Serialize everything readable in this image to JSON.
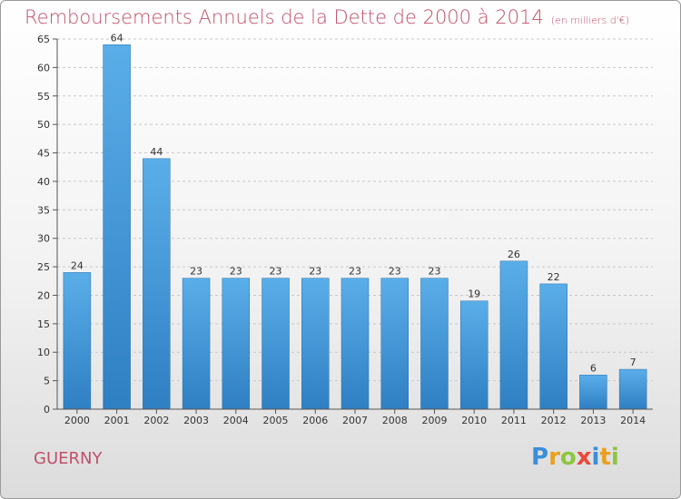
{
  "title": "Remboursements Annuels de la Dette de 2000 à 2014",
  "unit": "(en milliers d'€)",
  "commune": "GUERNY",
  "logo": "Proxiti",
  "colors": {
    "bar_top": "#5aaee8",
    "bar_bottom": "#2f7fc3",
    "title": "#c0506a"
  },
  "chart_data": {
    "type": "bar",
    "title": "Remboursements Annuels de la Dette de 2000 à 2014",
    "xlabel": "",
    "ylabel": "",
    "categories": [
      "2000",
      "2001",
      "2002",
      "2003",
      "2004",
      "2005",
      "2006",
      "2007",
      "2008",
      "2009",
      "2010",
      "2011",
      "2012",
      "2013",
      "2014"
    ],
    "values": [
      24,
      64,
      44,
      23,
      23,
      23,
      23,
      23,
      23,
      23,
      19,
      26,
      22,
      6,
      7
    ],
    "ylim": [
      0,
      65
    ],
    "yticks": [
      0,
      5,
      10,
      15,
      20,
      25,
      30,
      35,
      40,
      45,
      50,
      55,
      60,
      65
    ],
    "grid": "horizontal-dashed",
    "data_labels": true
  }
}
